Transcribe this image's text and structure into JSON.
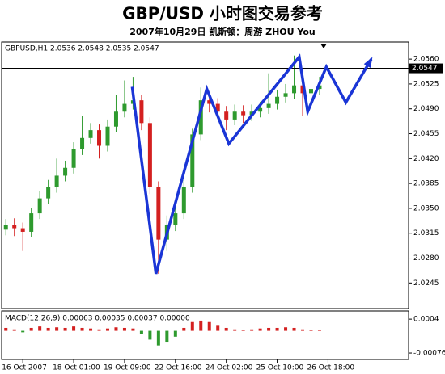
{
  "chart_data": [
    {
      "type": "candlestick",
      "title": "GBP/USD 小时图交易参考",
      "subtitle": "2007年10月29日  凯斯顿：周游 ZHOU You",
      "label": "GBPUSD,H1 2.0536 2.0548 2.0535 2.0547",
      "x": [
        0,
        1,
        2,
        3,
        4,
        5,
        6,
        7,
        8,
        9,
        10,
        11,
        12,
        13,
        14,
        15,
        16,
        17,
        18,
        19,
        20,
        21,
        22,
        23,
        24,
        25,
        26,
        27,
        28,
        29,
        30,
        31,
        32,
        33,
        34,
        35,
        36,
        37
      ],
      "open": [
        2.032,
        2.0327,
        2.0322,
        2.0317,
        2.0343,
        2.0364,
        2.038,
        2.0396,
        2.0407,
        2.0433,
        2.0449,
        2.046,
        2.0438,
        2.0465,
        2.0486,
        2.0497,
        2.0502,
        2.047,
        2.038,
        2.0306,
        2.0327,
        2.0343,
        2.038,
        2.0454,
        2.0502,
        2.0497,
        2.0486,
        2.0475,
        2.0486,
        2.0481,
        2.0486,
        2.0491,
        2.0497,
        2.0507,
        2.0512,
        2.0523,
        2.0512,
        2.0518
      ],
      "high": [
        2.0335,
        2.0336,
        2.033,
        2.0351,
        2.0374,
        2.039,
        2.042,
        2.0417,
        2.0443,
        2.048,
        2.047,
        2.0468,
        2.0475,
        2.051,
        2.053,
        2.0535,
        2.051,
        2.0478,
        2.0388,
        2.034,
        2.036,
        2.039,
        2.0462,
        2.052,
        2.0512,
        2.0505,
        2.0494,
        2.0496,
        2.0495,
        2.0496,
        2.05,
        2.054,
        2.0517,
        2.0525,
        2.0565,
        2.0532,
        2.053,
        2.0535
      ],
      "low": [
        2.0312,
        2.0311,
        2.029,
        2.0309,
        2.0335,
        2.0356,
        2.0372,
        2.0388,
        2.0399,
        2.0425,
        2.0441,
        2.042,
        2.043,
        2.0457,
        2.0478,
        2.0489,
        2.046,
        2.037,
        2.0258,
        2.029,
        2.0318,
        2.0335,
        2.0372,
        2.0446,
        2.0485,
        2.0476,
        2.046,
        2.0467,
        2.047,
        2.0473,
        2.0478,
        2.0483,
        2.0489,
        2.0499,
        2.0504,
        2.048,
        2.0503,
        2.051
      ],
      "close": [
        2.0327,
        2.0322,
        2.0317,
        2.0343,
        2.0364,
        2.038,
        2.0396,
        2.0407,
        2.0433,
        2.0449,
        2.046,
        2.0438,
        2.0465,
        2.0486,
        2.0497,
        2.0502,
        2.047,
        2.038,
        2.0306,
        2.0327,
        2.0343,
        2.038,
        2.0454,
        2.0502,
        2.0497,
        2.0486,
        2.0475,
        2.0486,
        2.0481,
        2.0486,
        2.0491,
        2.0497,
        2.0507,
        2.0512,
        2.0523,
        2.0512,
        2.0518,
        2.0523
      ],
      "up_color": "#2e9a2e",
      "down_color": "#d42020",
      "forecast": {
        "color": "#1a35d6",
        "x": [
          14.9,
          17.7,
          23.7,
          26.3,
          34.6,
          35.6,
          37.8,
          40.1,
          43.1
        ],
        "values": [
          2.0521,
          2.0258,
          2.0518,
          2.0441,
          2.0563,
          2.0486,
          2.0549,
          2.0499,
          2.056
        ]
      },
      "last_price": 2.0547,
      "xlim": [
        -0.5,
        47.5
      ],
      "xticks": [
        {
          "value": 2,
          "label": "16 Oct 2007"
        },
        {
          "value": 8,
          "label": "18 Oct 01:00"
        },
        {
          "value": 14,
          "label": "19 Oct 09:00"
        },
        {
          "value": 20,
          "label": "22 Oct 16:00"
        },
        {
          "value": 26,
          "label": "24 Oct 02:00"
        },
        {
          "value": 32,
          "label": "25 Oct 10:00"
        },
        {
          "value": 38,
          "label": "26 Oct 18:00"
        }
      ],
      "ylim": [
        2.0209,
        2.0584
      ],
      "yticks": [
        {
          "value": 2.056,
          "label": "2.0560"
        },
        2.0525,
        {
          "value": 2.049,
          "label": "2.0490"
        },
        2.0455,
        {
          "value": 2.042,
          "label": "2.0420"
        },
        2.0385,
        {
          "value": 2.035,
          "label": "2.0350"
        },
        2.0315,
        {
          "value": 2.028,
          "label": "2.0280"
        },
        2.0245
      ]
    },
    {
      "type": "bar",
      "label": "MACD(12,26,9) 0.00063 0.00035 0.00037 0.00000",
      "x": [
        0,
        1,
        2,
        3,
        4,
        5,
        6,
        7,
        8,
        9,
        10,
        11,
        12,
        13,
        14,
        15,
        16,
        17,
        18,
        19,
        20,
        21,
        22,
        23,
        24,
        25,
        26,
        27,
        28,
        29,
        30,
        31,
        32,
        33,
        34,
        35,
        36,
        37
      ],
      "values": [
        0.0001,
        5e-05,
        -5e-05,
        0.0001,
        0.00015,
        0.0001,
        0.00012,
        0.0001,
        0.00015,
        0.0001,
        8e-05,
        5e-05,
        8e-05,
        0.00012,
        0.0001,
        8e-05,
        -0.0001,
        -0.0003,
        -0.0005,
        -0.0004,
        -0.0002,
        0.0001,
        0.0003,
        0.00035,
        0.0003,
        0.0002,
        0.0001,
        5e-05,
        3e-05,
        5e-05,
        8e-05,
        0.0001,
        0.0001,
        0.00012,
        0.0001,
        5e-05,
        3e-05,
        2e-05
      ],
      "pos_color": "#d42020",
      "neg_color": "#2e9a2e",
      "xlim": [
        -0.5,
        47.5
      ],
      "ylim": [
        -0.00098,
        0.00068
      ],
      "yticks": [
        0.0004,
        -0.00076
      ]
    }
  ]
}
